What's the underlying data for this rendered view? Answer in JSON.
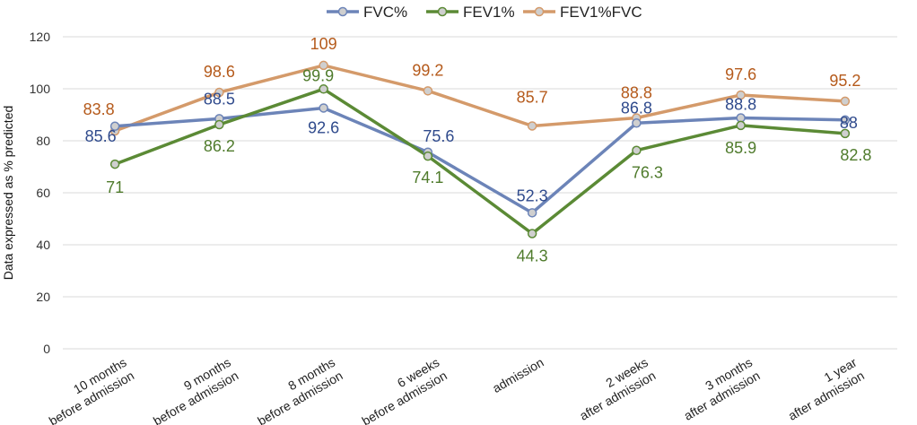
{
  "chart_data": {
    "type": "line",
    "title": "",
    "xlabel": "",
    "ylabel": "Data expressed as % predicted",
    "ylim": [
      0,
      120
    ],
    "yticks": [
      "0",
      "20",
      "40",
      "60",
      "80",
      "100",
      "120"
    ],
    "grid": true,
    "legend_position": "top-center",
    "categories": [
      [
        "10 months",
        "before admission"
      ],
      [
        "9 months",
        "before admission"
      ],
      [
        "8 months",
        "before admission"
      ],
      [
        "6 weeks",
        "before admission"
      ],
      [
        "admission"
      ],
      [
        "2 weeks",
        "after admission"
      ],
      [
        "3 months",
        "after admission"
      ],
      [
        "1 year",
        "after admission"
      ]
    ],
    "series": [
      {
        "name": "FVC%",
        "color": "#6c84b8",
        "label_color": "#2f4a8c",
        "values": [
          85.6,
          88.5,
          92.6,
          75.6,
          52.3,
          86.8,
          88.8,
          88
        ],
        "labels": [
          "85.6",
          "88.5",
          "92.6",
          "75.6",
          "52.3",
          "86.8",
          "88.8",
          "88"
        ]
      },
      {
        "name": "FEV1%",
        "color": "#5b8a35",
        "label_color": "#4f7b2c",
        "values": [
          71,
          86.2,
          99.9,
          74.1,
          44.3,
          76.3,
          85.9,
          82.8
        ],
        "labels": [
          "71",
          "86.2",
          "99.9",
          "74.1",
          "44.3",
          "76.3",
          "85.9",
          "82.8"
        ]
      },
      {
        "name": "FEV1%FVC",
        "color": "#d49a6a",
        "label_color": "#b55a1b",
        "values": [
          83.8,
          98.6,
          109,
          99.2,
          85.7,
          88.8,
          97.6,
          95.2
        ],
        "labels": [
          "83.8",
          "98.6",
          "109",
          "99.2",
          "85.7",
          "88.8",
          "97.6",
          "95.2"
        ]
      }
    ]
  }
}
